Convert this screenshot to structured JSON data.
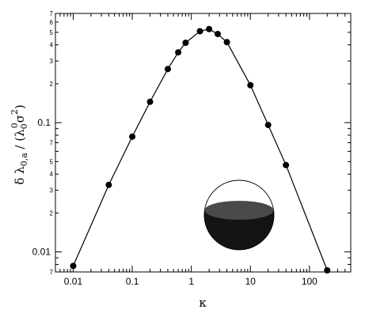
{
  "chart_data": {
    "type": "scatter",
    "xlabel": "κ",
    "ylabel": "δ λ",
    "ylabel_sub": "0,a",
    "ylabel_mid": " / (λ",
    "ylabel_sub2": "0",
    "ylabel_sup2": "0",
    "ylabel_end": "σ",
    "ylabel_sup3": "2",
    "ylabel_close": ")",
    "x_scale": "log",
    "y_scale": "log",
    "xlim": [
      0.005,
      500
    ],
    "ylim": [
      0.007,
      0.7
    ],
    "grid": false,
    "x_ticks": [
      "0.01",
      "0.1",
      "1",
      "10",
      "100"
    ],
    "y_major_ticks": [
      "0.01",
      "0.1"
    ],
    "y_minor_ticks": [
      "7",
      "2",
      "3",
      "4",
      "5",
      "7",
      "2",
      "3",
      "4",
      "5",
      "6",
      "7"
    ],
    "series": [
      {
        "line": true,
        "marker": "filled-circle",
        "color": "#000000",
        "x": [
          0.01,
          0.04,
          0.1,
          0.2,
          0.4,
          0.6,
          0.8,
          1.4,
          2.0,
          2.8,
          4.0,
          10,
          20,
          40,
          200
        ],
        "y": [
          0.0078,
          0.033,
          0.078,
          0.145,
          0.26,
          0.35,
          0.415,
          0.51,
          0.53,
          0.485,
          0.42,
          0.195,
          0.096,
          0.047,
          0.0072
        ]
      }
    ],
    "inset": {
      "shape": "sphere-partially-filled",
      "fill_color": "#141414",
      "outline_color": "#000000"
    }
  }
}
